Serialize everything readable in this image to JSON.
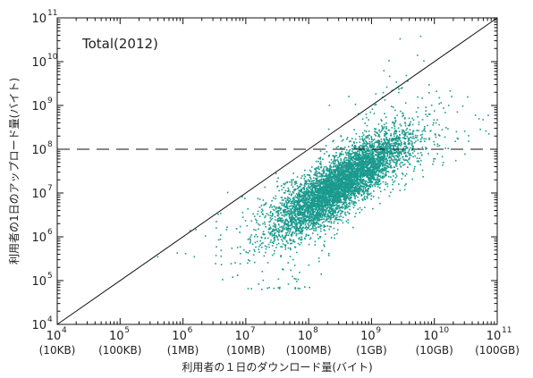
{
  "chart_data": {
    "type": "scatter",
    "title": "Total(2012)",
    "xlabel": "利用者の１日のダウンロード量(バイト)",
    "ylabel": "利用者の1日のアップロード量(バイト)",
    "x_scale": "log",
    "y_scale": "log",
    "xlim": [
      10000,
      100000000000
    ],
    "ylim": [
      10000,
      100000000000
    ],
    "x_ticks": [
      {
        "value": 10000,
        "base": "10",
        "exp": "4",
        "sub": "(10KB)"
      },
      {
        "value": 100000,
        "base": "10",
        "exp": "5",
        "sub": "(100KB)"
      },
      {
        "value": 1000000,
        "base": "10",
        "exp": "6",
        "sub": "(1MB)"
      },
      {
        "value": 10000000,
        "base": "10",
        "exp": "7",
        "sub": "(10MB)"
      },
      {
        "value": 100000000,
        "base": "10",
        "exp": "8",
        "sub": "(100MB)"
      },
      {
        "value": 1000000000,
        "base": "10",
        "exp": "9",
        "sub": "(1GB)"
      },
      {
        "value": 10000000000,
        "base": "10",
        "exp": "10",
        "sub": "(10GB)"
      },
      {
        "value": 100000000000,
        "base": "10",
        "exp": "11",
        "sub": "(100GB)"
      }
    ],
    "y_ticks": [
      {
        "value": 10000,
        "base": "10",
        "exp": "4"
      },
      {
        "value": 100000,
        "base": "10",
        "exp": "5"
      },
      {
        "value": 1000000,
        "base": "10",
        "exp": "6"
      },
      {
        "value": 10000000,
        "base": "10",
        "exp": "7"
      },
      {
        "value": 100000000,
        "base": "10",
        "exp": "8"
      },
      {
        "value": 1000000000,
        "base": "10",
        "exp": "9"
      },
      {
        "value": 10000000000,
        "base": "10",
        "exp": "10"
      },
      {
        "value": 100000000000,
        "base": "10",
        "exp": "11"
      }
    ],
    "reference_lines": [
      {
        "kind": "diagonal",
        "style": "solid",
        "equation": "y = x"
      },
      {
        "kind": "horizontal",
        "style": "dashed",
        "y": 100000000
      }
    ],
    "point_color": "#1a9a8e",
    "line_color": "#111111",
    "grid": false,
    "series": [
      {
        "distribution": "lognormal-cloud",
        "count": 6000,
        "center_log10": [
          8.5,
          7.2
        ],
        "sigma_log10": [
          0.55,
          0.6
        ],
        "correlation": 0.85,
        "floor_log10_y": 4.8,
        "ceil_log10_y": 10.6
      }
    ]
  }
}
